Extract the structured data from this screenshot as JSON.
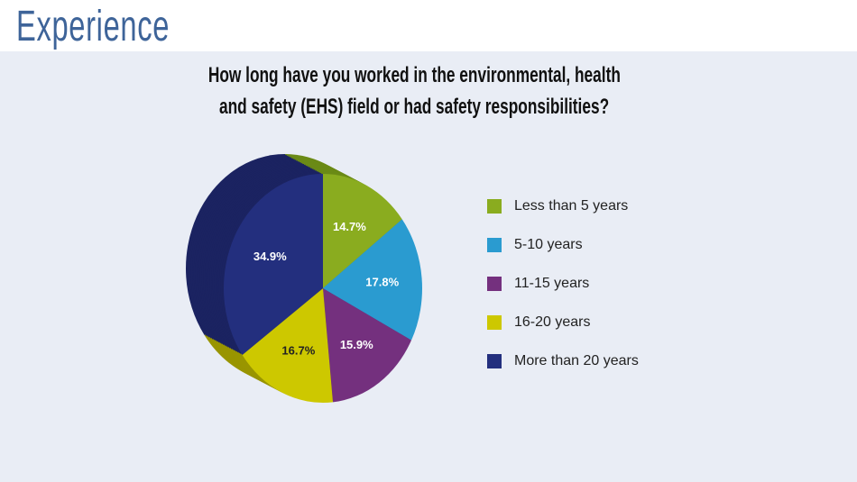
{
  "header": {
    "title": "Experience"
  },
  "chart_data": {
    "type": "pie",
    "title": "How long have you worked in the environmental, health and safety (EHS) field or had safety responsibilities?",
    "title_lines": [
      "How long have you worked in the environmental, health",
      "and safety (EHS) field or had safety responsibilities?"
    ],
    "categories": [
      "Less than 5 years",
      "5-10 years",
      "11-15 years",
      "16-20 years",
      "More than 20 years"
    ],
    "values": [
      14.7,
      17.8,
      15.9,
      16.7,
      34.9
    ],
    "data_labels": [
      "14.7%",
      "17.8%",
      "15.9%",
      "16.7%",
      "34.9%"
    ],
    "colors": [
      "#8aac1f",
      "#2a9bd0",
      "#74307e",
      "#cdc800",
      "#232f7e"
    ],
    "side_colors": [
      "#6b8a16",
      "#1f7aa6",
      "#561f5e",
      "#999500",
      "#1b2361"
    ],
    "label_colors": [
      "#ffffff",
      "#ffffff",
      "#ffffff",
      "#222222",
      "#ffffff"
    ],
    "legend_position": "right"
  }
}
